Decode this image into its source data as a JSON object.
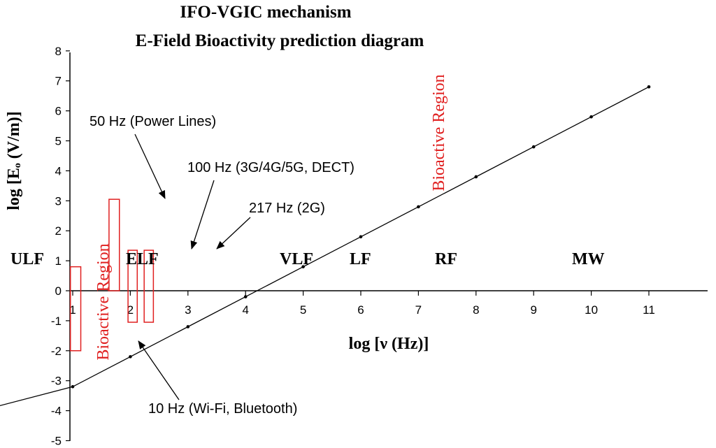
{
  "chart_data": {
    "type": "line",
    "title_lines": [
      "IFO-VGIC mechanism",
      "E-Field Bioactivity prediction diagram"
    ],
    "xlabel": "log [ν (Hz)]",
    "ylabel": "log [Eₒ (V/m)]",
    "xlim": [
      -1.05,
      11
    ],
    "ylim": [
      -5,
      8
    ],
    "x_ticks": [
      1,
      2,
      3,
      4,
      5,
      6,
      7,
      8,
      9,
      10,
      11
    ],
    "y_ticks": [
      8,
      7,
      6,
      5,
      4,
      3,
      2,
      1,
      0,
      -1,
      -2,
      -3,
      -4,
      -5
    ],
    "series": [
      {
        "x": [
          -1,
          1,
          2,
          3,
          4,
          5,
          6,
          7,
          8,
          9,
          10,
          11
        ],
        "y": [
          -4.2,
          -3.2,
          -2.2,
          -1.2,
          -0.2,
          0.8,
          1.8,
          2.8,
          3.8,
          4.8,
          5.8,
          6.8
        ]
      }
    ],
    "ranges": [
      {
        "x0": 0.96,
        "x1": 1.14,
        "y0": -2.0,
        "y1": 0.8
      },
      {
        "x0": 1.63,
        "x1": 1.81,
        "y0": 0.0,
        "y1": 3.05
      },
      {
        "x0": 1.96,
        "x1": 2.12,
        "y0": -1.05,
        "y1": 1.35
      },
      {
        "x0": 2.24,
        "x1": 2.4,
        "y0": -1.05,
        "y1": 1.35
      }
    ],
    "band_labels": [
      "ULF",
      "ELF",
      "VLF",
      "LF",
      "RF",
      "MW"
    ],
    "annotations": [
      "50 Hz (Power Lines)",
      "100 Hz (3G/4G/5G, DECT)",
      "217 Hz (2G)",
      "10 Hz (Wi-Fi, Bluetooth)"
    ],
    "region_labels": [
      "Bioactive Region",
      "Bioactive Region"
    ],
    "colors": {
      "line": "#000000",
      "range": "#e02020",
      "region_label": "#e02020"
    }
  }
}
